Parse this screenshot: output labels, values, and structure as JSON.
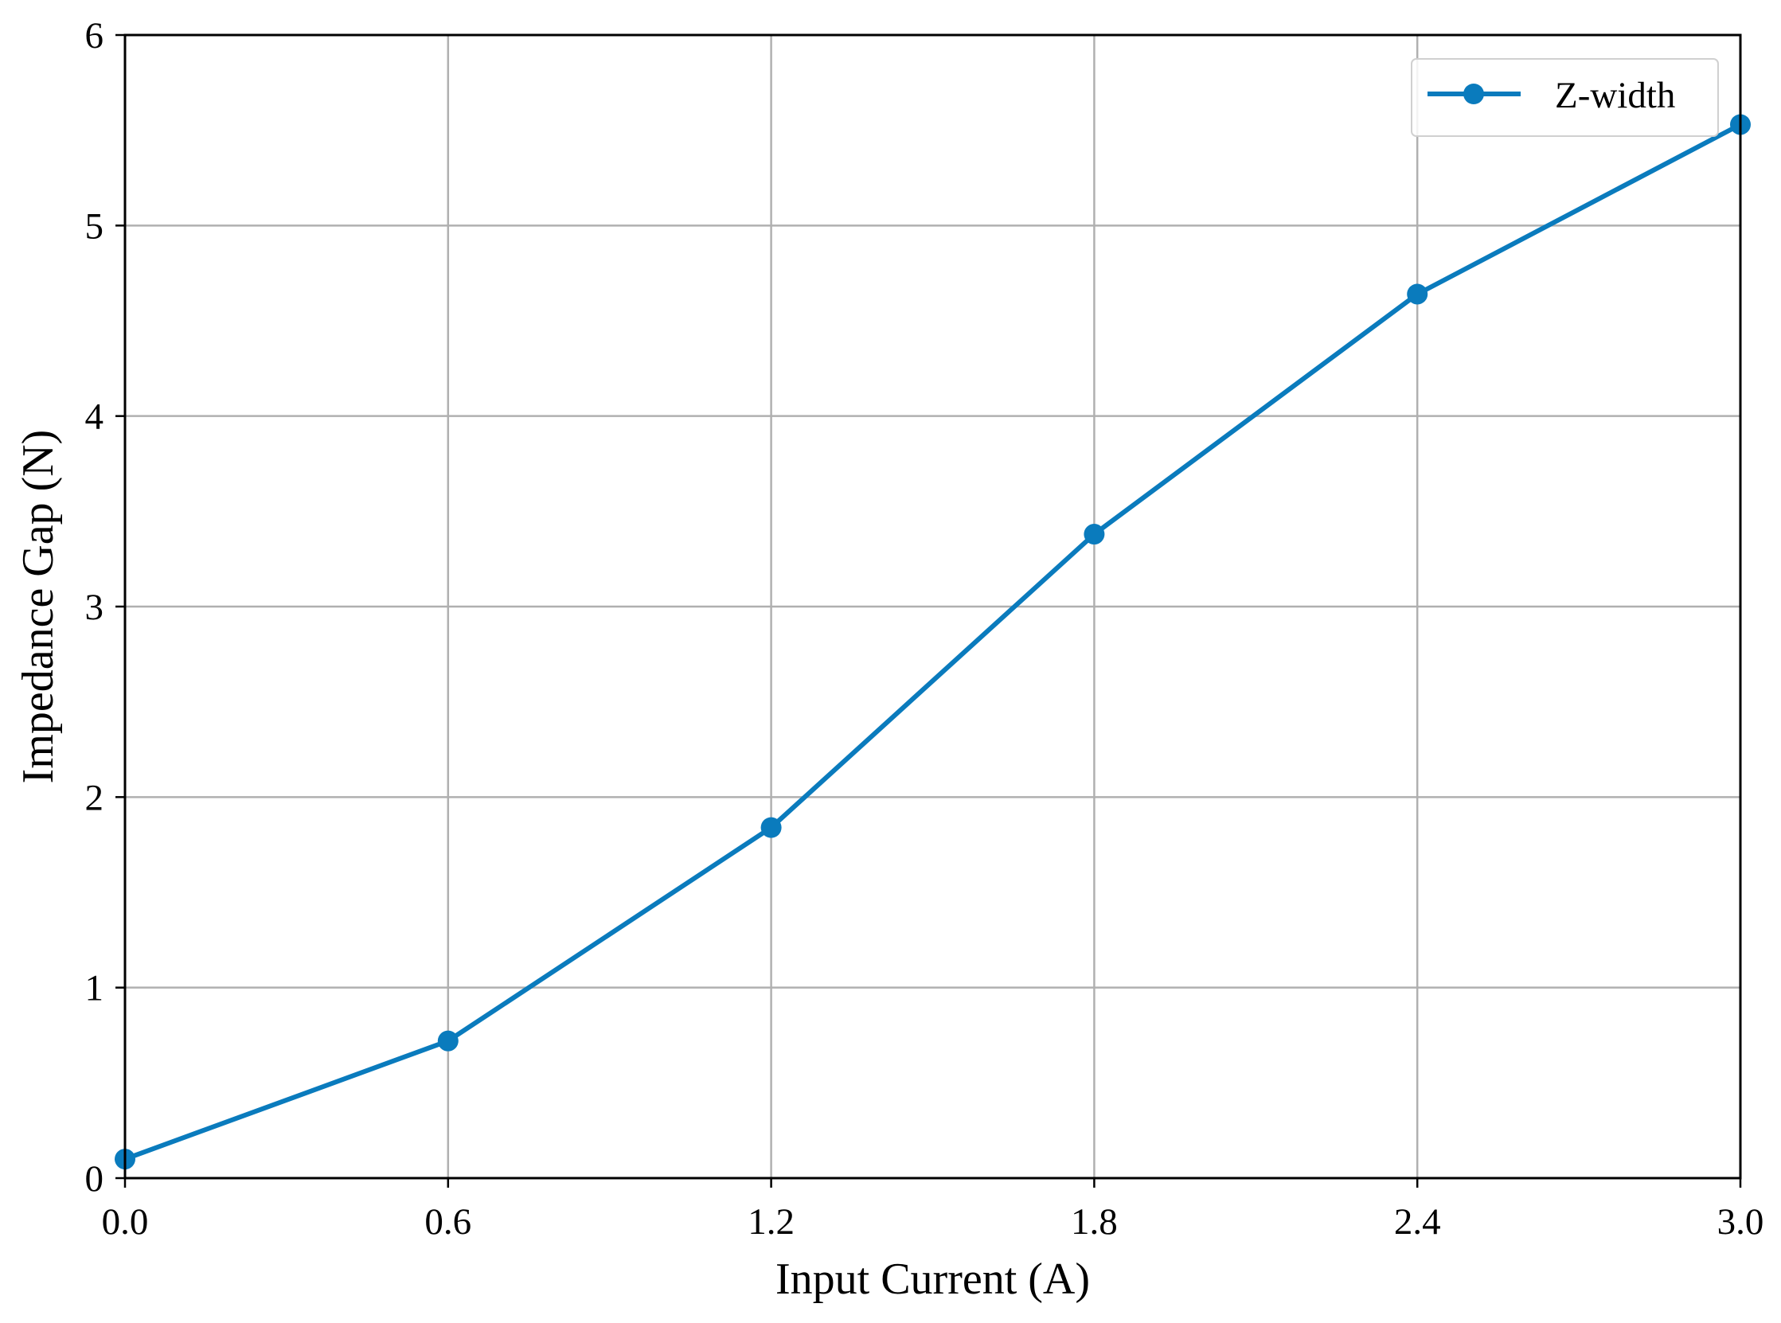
{
  "chart_data": {
    "type": "line",
    "xlabel": "Input Current (A)",
    "ylabel": "Impedance Gap (N)",
    "xlim": [
      0,
      3.0
    ],
    "ylim": [
      0,
      6
    ],
    "x_ticks": [
      "0.0",
      "0.6",
      "1.2",
      "1.8",
      "2.4",
      "3.0"
    ],
    "y_ticks": [
      "0",
      "1",
      "2",
      "3",
      "4",
      "5",
      "6"
    ],
    "grid": true,
    "legend_position": "top-right",
    "series": [
      {
        "name": "Z-width",
        "color": "#0a7bbd",
        "marker": "circle",
        "x": [
          0.0,
          0.6,
          1.2,
          1.8,
          2.4,
          3.0
        ],
        "y": [
          0.1,
          0.72,
          1.84,
          3.38,
          4.64,
          5.53
        ]
      }
    ]
  }
}
